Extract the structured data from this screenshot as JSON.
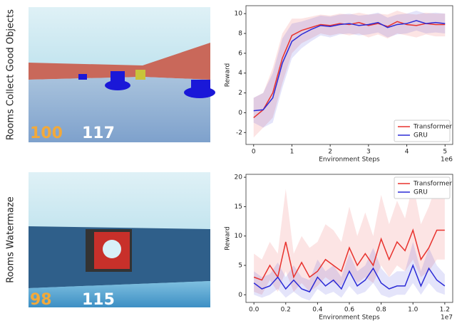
{
  "row_labels": [
    "Rooms Collect Good Objects",
    "Rooms Watermaze"
  ],
  "screenshots": [
    {
      "hud": [
        "100",
        "117"
      ]
    },
    {
      "hud": [
        "98",
        "115"
      ]
    }
  ],
  "chart_data": [
    {
      "type": "line",
      "xlabel": "Environment Steps",
      "ylabel": "Reward",
      "x_offset_label": "1e6",
      "x": [
        0,
        250000,
        500000,
        750000,
        1000000,
        1250000,
        1500000,
        1750000,
        2000000,
        2250000,
        2500000,
        2750000,
        3000000,
        3250000,
        3500000,
        3750000,
        4000000,
        4250000,
        4500000,
        4750000,
        5000000
      ],
      "xlim": [
        -200000,
        5200000
      ],
      "xticks": [
        {
          "value": 0,
          "label": "0"
        },
        {
          "value": 1000000,
          "label": "1"
        },
        {
          "value": 2000000,
          "label": "2"
        },
        {
          "value": 3000000,
          "label": "3"
        },
        {
          "value": 4000000,
          "label": "4"
        },
        {
          "value": 5000000,
          "label": "5"
        }
      ],
      "ylim": [
        -3.2,
        10.8
      ],
      "yticks": [
        -2,
        0,
        2,
        4,
        6,
        8,
        10
      ],
      "legend": "lower right",
      "series": [
        {
          "name": "Transformer",
          "color": "#e8322d",
          "values": [
            -0.5,
            0.3,
            2,
            5.5,
            7.8,
            8.3,
            8.6,
            8.9,
            8.8,
            9.0,
            8.9,
            9.1,
            8.8,
            9.0,
            8.7,
            9.2,
            8.9,
            8.8,
            9.0,
            8.9,
            8.9
          ],
          "lower": [
            -2.5,
            -1.5,
            -0.5,
            3,
            6,
            7,
            7.5,
            8,
            7.8,
            8,
            7.8,
            8,
            7.6,
            7.9,
            7.5,
            8,
            7.8,
            7.6,
            7.9,
            7.7,
            7.7
          ],
          "upper": [
            1.5,
            2,
            4.5,
            8,
            9.5,
            9.5,
            9.7,
            9.9,
            9.8,
            10,
            9.9,
            10.1,
            9.9,
            10,
            9.9,
            10.3,
            10,
            9.9,
            10.1,
            10,
            10
          ]
        },
        {
          "name": "GRU",
          "color": "#2b2bd6",
          "values": [
            0.2,
            0.3,
            1.5,
            5,
            7.2,
            7.9,
            8.4,
            8.8,
            8.7,
            8.9,
            9.0,
            8.8,
            8.9,
            9.1,
            8.6,
            8.9,
            9.0,
            9.3,
            9.0,
            9.1,
            9.0
          ],
          "lower": [
            -1,
            -1.5,
            -1,
            2.5,
            5.5,
            6.5,
            7.2,
            7.8,
            7.6,
            7.9,
            8,
            7.8,
            7.9,
            8.1,
            7.6,
            7.9,
            8,
            8.3,
            8,
            8.1,
            8
          ],
          "upper": [
            1.5,
            2,
            4,
            7.5,
            9,
            9.2,
            9.5,
            9.8,
            9.7,
            9.9,
            10,
            9.8,
            9.9,
            10.1,
            9.6,
            9.9,
            10,
            10.3,
            10,
            10.1,
            10
          ]
        }
      ]
    },
    {
      "type": "line",
      "xlabel": "Environment Steps",
      "ylabel": "Reward",
      "x_offset_label": "1e7",
      "x": [
        0,
        500000,
        1000000,
        1500000,
        2000000,
        2500000,
        3000000,
        3500000,
        4000000,
        4500000,
        5000000,
        5500000,
        6000000,
        6500000,
        7000000,
        7500000,
        8000000,
        8500000,
        9000000,
        9500000,
        10000000,
        10500000,
        11000000,
        11500000,
        12000000
      ],
      "xlim": [
        -500000,
        12500000
      ],
      "xticks": [
        {
          "value": 0,
          "label": "0.0"
        },
        {
          "value": 2000000,
          "label": "0.2"
        },
        {
          "value": 4000000,
          "label": "0.4"
        },
        {
          "value": 6000000,
          "label": "0.6"
        },
        {
          "value": 8000000,
          "label": "0.8"
        },
        {
          "value": 10000000,
          "label": "1.0"
        },
        {
          "value": 12000000,
          "label": "1.2"
        }
      ],
      "ylim": [
        -1.3,
        20.5
      ],
      "yticks": [
        0,
        5,
        10,
        15,
        20
      ],
      "legend": "upper right",
      "series": [
        {
          "name": "Transformer",
          "color": "#e8322d",
          "values": [
            3,
            2.5,
            5,
            3,
            9,
            3,
            5.5,
            3,
            4,
            6,
            5,
            4,
            8,
            5,
            7,
            5,
            9.5,
            6,
            9,
            7.5,
            11,
            6,
            8,
            11,
            11
          ],
          "lower": [
            0.5,
            0,
            2.5,
            0.5,
            4,
            0.5,
            2,
            0.5,
            1.5,
            3,
            2,
            1.5,
            4,
            2,
            3,
            2,
            5,
            3,
            5,
            4,
            6,
            3,
            4,
            6,
            6
          ],
          "upper": [
            7,
            6,
            9,
            7,
            18,
            7,
            10,
            8,
            9,
            12,
            11,
            9,
            15,
            10,
            14,
            10,
            17,
            12,
            16,
            13,
            19,
            12,
            15,
            19,
            19
          ]
        },
        {
          "name": "GRU",
          "color": "#2b2bd6",
          "values": [
            2,
            1,
            1.5,
            3,
            1,
            2.5,
            1,
            0.5,
            3,
            1.5,
            2.5,
            1,
            4,
            1.5,
            2.5,
            4.5,
            2,
            1,
            1.5,
            1.5,
            5,
            1.5,
            4.5,
            2.5,
            1.5
          ],
          "lower": [
            0,
            -0.5,
            0,
            1,
            -0.5,
            0.5,
            -0.5,
            -1,
            1,
            0,
            0.5,
            -0.5,
            1.5,
            0,
            0.5,
            2,
            0,
            -0.5,
            0,
            0,
            2,
            0,
            2,
            0.5,
            0
          ],
          "upper": [
            4,
            3,
            3.5,
            5.5,
            3,
            5,
            3,
            2.5,
            6,
            4,
            5,
            3,
            7,
            4,
            5,
            8,
            4.5,
            3,
            4,
            4,
            9,
            4,
            8,
            5,
            3.5
          ]
        }
      ]
    }
  ]
}
